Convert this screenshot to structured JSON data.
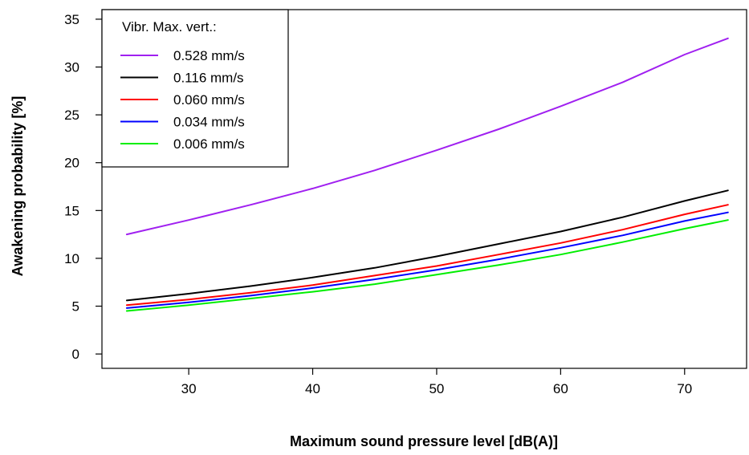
{
  "chart_data": {
    "type": "line",
    "xlabel": "Maximum sound pressure level [dB(A)]",
    "ylabel": "Awakening probability [%]",
    "xlim": [
      23,
      75
    ],
    "ylim": [
      -1.5,
      36
    ],
    "x_ticks": [
      30,
      40,
      50,
      60,
      70
    ],
    "y_ticks": [
      0,
      5,
      10,
      15,
      20,
      25,
      30,
      35
    ],
    "grid": false,
    "legend": {
      "title": "Vibr. Max. vert.:",
      "placement": "top-left"
    },
    "x": [
      25,
      30,
      35,
      40,
      45,
      50,
      55,
      60,
      65,
      70,
      73.5
    ],
    "series": [
      {
        "name": "0.528 mm/s",
        "color": "#a020f0",
        "values": [
          12.5,
          14.0,
          15.6,
          17.3,
          19.2,
          21.3,
          23.5,
          25.9,
          28.4,
          31.3,
          33.0
        ]
      },
      {
        "name": "0.116 mm/s",
        "color": "#000000",
        "values": [
          5.6,
          6.3,
          7.1,
          8.0,
          9.0,
          10.2,
          11.5,
          12.8,
          14.3,
          16.0,
          17.1
        ]
      },
      {
        "name": "0.060 mm/s",
        "color": "#ff0000",
        "values": [
          5.1,
          5.7,
          6.4,
          7.2,
          8.2,
          9.2,
          10.4,
          11.6,
          13.0,
          14.6,
          15.6
        ]
      },
      {
        "name": "0.034 mm/s",
        "color": "#0000ff",
        "values": [
          4.8,
          5.4,
          6.1,
          6.9,
          7.8,
          8.8,
          9.9,
          11.1,
          12.4,
          13.9,
          14.8
        ]
      },
      {
        "name": "0.006 mm/s",
        "color": "#00ee00",
        "values": [
          4.5,
          5.1,
          5.8,
          6.5,
          7.3,
          8.3,
          9.3,
          10.4,
          11.7,
          13.1,
          14.0
        ]
      }
    ]
  }
}
